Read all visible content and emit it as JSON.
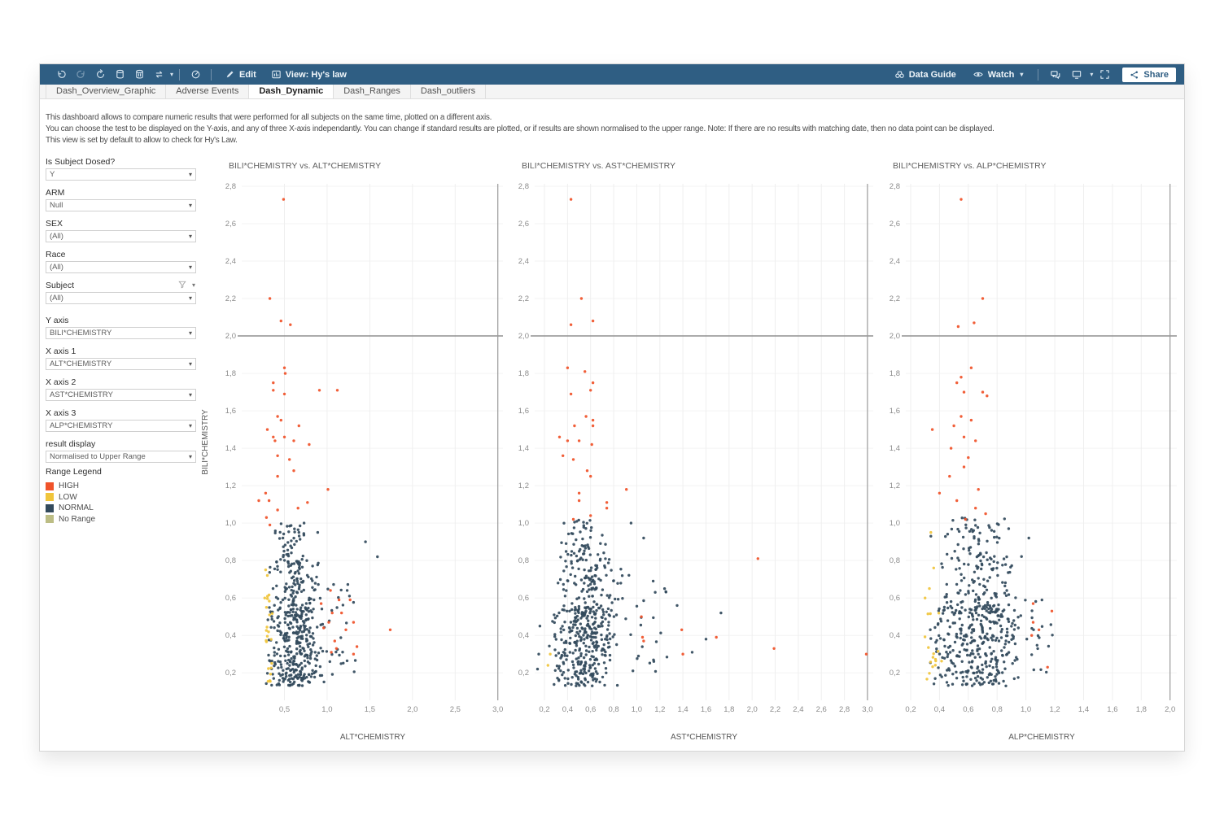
{
  "toolbar": {
    "edit_label": "Edit",
    "view_label": "View: Hy's law",
    "data_guide_label": "Data Guide",
    "watch_label": "Watch",
    "share_label": "Share"
  },
  "tabs": [
    {
      "label": "Dash_Overview_Graphic",
      "active": false
    },
    {
      "label": "Adverse Events",
      "active": false
    },
    {
      "label": "Dash_Dynamic",
      "active": true
    },
    {
      "label": "Dash_Ranges",
      "active": false
    },
    {
      "label": "Dash_outliers",
      "active": false
    }
  ],
  "description": {
    "line1": "This dashboard allows to compare numeric results that were performed for all subjects on the same time, plotted on a different axis.",
    "line2": "You can choose the test to be displayed on the Y-axis, and any of three X-axis independantly. You can change if standard results are plotted, or if results are shown normalised to the upper range. Note: If there are no results with matching date, then no data point can be displayed.",
    "line3": "This view is set by default to allow to check for Hy's Law."
  },
  "filters": [
    {
      "label": "Is Subject Dosed?",
      "value": "Y"
    },
    {
      "label": "ARM",
      "value": "Null"
    },
    {
      "label": "SEX",
      "value": "(All)"
    },
    {
      "label": "Race",
      "value": "(All)"
    },
    {
      "label": "Subject",
      "value": "(All)",
      "has_funnel": true
    },
    {
      "label": "Y axis",
      "value": "BILI*CHEMISTRY"
    },
    {
      "label": "X axis 1",
      "value": "ALT*CHEMISTRY"
    },
    {
      "label": "X axis 2",
      "value": "AST*CHEMISTRY"
    },
    {
      "label": "X axis 3",
      "value": "ALP*CHEMISTRY"
    },
    {
      "label": "result display",
      "value": "Normalised to Upper Range"
    }
  ],
  "legend": {
    "title": "Range Legend",
    "items": [
      {
        "label": "HIGH",
        "color": "#F0532A"
      },
      {
        "label": "LOW",
        "color": "#F0C53C"
      },
      {
        "label": "NORMAL",
        "color": "#334A5C"
      },
      {
        "label": "No Range",
        "color": "#BCBD85"
      }
    ]
  },
  "charts": [
    {
      "type": "scatter",
      "title": "BILI*CHEMISTRY vs. ALT*CHEMISTRY",
      "x_label": "ALT*CHEMISTRY",
      "y_label": "BILI*CHEMISTRY",
      "x_min": 0.0,
      "x_max": 3.06,
      "y_min": 0.053,
      "y_max": 2.813,
      "x_ticks": [
        0.5,
        1.0,
        1.5,
        2.0,
        2.5,
        3.0
      ],
      "y_ticks": [
        0.2,
        0.4,
        0.6,
        0.8,
        1.0,
        1.2,
        1.4,
        1.6,
        1.8,
        2.0,
        2.2,
        2.4,
        2.6,
        2.8
      ],
      "ref_y": 2.0,
      "ref_x": 3.0,
      "clusters": [
        {
          "cat": "NORMAL",
          "n": 300,
          "x": [
            0.27,
            1.0
          ],
          "y": [
            0.13,
            0.55
          ]
        },
        {
          "cat": "NORMAL",
          "n": 120,
          "x": [
            0.3,
            0.95
          ],
          "y": [
            0.5,
            0.8
          ]
        },
        {
          "cat": "NORMAL",
          "n": 45,
          "x": [
            0.33,
            0.8
          ],
          "y": [
            0.78,
            1.0
          ]
        },
        {
          "cat": "NORMAL",
          "n": 28,
          "x": [
            0.88,
            1.35
          ],
          "y": [
            0.18,
            0.68
          ]
        },
        {
          "cat": "LOW",
          "n": 20,
          "x": [
            0.26,
            0.37
          ],
          "y": [
            0.14,
            0.66
          ]
        }
      ],
      "points": [
        {
          "cat": "NORMAL",
          "pts": [
            [
              1.59,
              0.82
            ],
            [
              1.45,
              0.9
            ],
            [
              0.89,
              0.95
            ],
            [
              0.67,
              0.95
            ],
            [
              0.73,
              1.0
            ]
          ]
        },
        {
          "cat": "LOW",
          "pts": [
            [
              0.28,
              0.75
            ],
            [
              0.3,
              0.72
            ],
            [
              0.27,
              0.6
            ],
            [
              0.29,
              0.55
            ]
          ]
        },
        {
          "cat": "HIGH",
          "pts": [
            [
              0.49,
              2.73
            ],
            [
              0.33,
              2.2
            ],
            [
              0.46,
              2.08
            ],
            [
              0.57,
              2.06
            ],
            [
              0.5,
              1.83
            ],
            [
              0.51,
              1.8
            ],
            [
              0.37,
              1.75
            ],
            [
              0.37,
              1.71
            ],
            [
              0.5,
              1.69
            ],
            [
              0.91,
              1.71
            ],
            [
              1.12,
              1.71
            ],
            [
              0.42,
              1.57
            ],
            [
              0.46,
              1.55
            ],
            [
              0.3,
              1.5
            ],
            [
              0.67,
              1.52
            ],
            [
              0.37,
              1.46
            ],
            [
              0.5,
              1.46
            ],
            [
              0.39,
              1.44
            ],
            [
              0.61,
              1.44
            ],
            [
              0.79,
              1.42
            ],
            [
              0.42,
              1.36
            ],
            [
              0.56,
              1.34
            ],
            [
              0.61,
              1.28
            ],
            [
              0.42,
              1.25
            ],
            [
              1.01,
              1.18
            ],
            [
              0.28,
              1.16
            ],
            [
              0.2,
              1.12
            ],
            [
              0.32,
              1.12
            ],
            [
              0.77,
              1.11
            ],
            [
              0.66,
              1.08
            ],
            [
              0.42,
              1.07
            ],
            [
              0.29,
              1.03
            ],
            [
              0.33,
              0.99
            ],
            [
              1.04,
              0.64
            ],
            [
              1.14,
              0.59
            ],
            [
              1.27,
              0.59
            ],
            [
              1.06,
              0.52
            ],
            [
              1.17,
              0.52
            ],
            [
              1.31,
              0.47
            ],
            [
              0.96,
              0.44
            ],
            [
              1.22,
              0.43
            ],
            [
              1.74,
              0.43
            ],
            [
              1.09,
              0.37
            ],
            [
              1.35,
              0.34
            ],
            [
              1.11,
              0.33
            ],
            [
              1.05,
              0.31
            ],
            [
              1.31,
              0.3
            ],
            [
              0.93,
              0.57
            ],
            [
              1.02,
              0.47
            ]
          ]
        }
      ]
    },
    {
      "type": "scatter",
      "title": "BILI*CHEMISTRY vs. AST*CHEMISTRY",
      "x_label": "AST*CHEMISTRY",
      "x_min": 0.115,
      "x_max": 3.05,
      "y_min": 0.053,
      "y_max": 2.813,
      "x_ticks": [
        0.2,
        0.4,
        0.6,
        0.8,
        1.0,
        1.2,
        1.4,
        1.6,
        1.8,
        2.0,
        2.2,
        2.4,
        2.6,
        2.8,
        3.0
      ],
      "y_ticks": [
        0.2,
        0.4,
        0.6,
        0.8,
        1.0,
        1.2,
        1.4,
        1.6,
        1.8,
        2.0,
        2.2,
        2.4,
        2.6,
        2.8
      ],
      "ref_y": 2.0,
      "ref_x": 3.0,
      "clusters": [
        {
          "cat": "NORMAL",
          "n": 300,
          "x": [
            0.22,
            0.85
          ],
          "y": [
            0.13,
            0.55
          ]
        },
        {
          "cat": "NORMAL",
          "n": 130,
          "x": [
            0.25,
            0.92
          ],
          "y": [
            0.5,
            0.85
          ]
        },
        {
          "cat": "NORMAL",
          "n": 40,
          "x": [
            0.32,
            0.78
          ],
          "y": [
            0.82,
            1.02
          ]
        },
        {
          "cat": "NORMAL",
          "n": 25,
          "x": [
            0.85,
            1.3
          ],
          "y": [
            0.2,
            0.75
          ]
        }
      ],
      "points": [
        {
          "cat": "NORMAL",
          "pts": [
            [
              1.16,
              0.63
            ],
            [
              1.35,
              0.56
            ],
            [
              1.48,
              0.31
            ],
            [
              1.73,
              0.52
            ],
            [
              1.06,
              0.92
            ],
            [
              0.95,
              1.0
            ],
            [
              1.6,
              0.38
            ],
            [
              0.15,
              0.3
            ],
            [
              0.16,
              0.45
            ],
            [
              0.14,
              0.22
            ]
          ]
        },
        {
          "cat": "LOW",
          "pts": [
            [
              0.25,
              0.3
            ],
            [
              0.23,
              0.24
            ]
          ]
        },
        {
          "cat": "HIGH",
          "pts": [
            [
              0.43,
              2.73
            ],
            [
              0.52,
              2.2
            ],
            [
              0.62,
              2.08
            ],
            [
              0.43,
              2.06
            ],
            [
              0.4,
              1.83
            ],
            [
              0.55,
              1.81
            ],
            [
              0.62,
              1.75
            ],
            [
              0.6,
              1.71
            ],
            [
              0.43,
              1.69
            ],
            [
              0.56,
              1.57
            ],
            [
              0.62,
              1.55
            ],
            [
              0.46,
              1.52
            ],
            [
              0.62,
              1.52
            ],
            [
              0.33,
              1.46
            ],
            [
              0.4,
              1.44
            ],
            [
              0.5,
              1.44
            ],
            [
              0.61,
              1.42
            ],
            [
              0.36,
              1.36
            ],
            [
              0.45,
              1.34
            ],
            [
              0.57,
              1.28
            ],
            [
              0.6,
              1.25
            ],
            [
              0.91,
              1.18
            ],
            [
              0.5,
              1.16
            ],
            [
              0.5,
              1.12
            ],
            [
              0.74,
              1.11
            ],
            [
              0.74,
              1.08
            ],
            [
              0.6,
              1.04
            ],
            [
              0.45,
              1.02
            ],
            [
              1.04,
              0.5
            ],
            [
              1.05,
              0.39
            ],
            [
              1.06,
              0.37
            ],
            [
              1.39,
              0.43
            ],
            [
              1.69,
              0.39
            ],
            [
              2.05,
              0.81
            ],
            [
              2.19,
              0.33
            ],
            [
              2.99,
              0.3
            ],
            [
              1.4,
              0.3
            ]
          ]
        }
      ]
    },
    {
      "type": "scatter",
      "title": "BILI*CHEMISTRY vs. ALP*CHEMISTRY",
      "x_label": "ALP*CHEMISTRY",
      "x_min": 0.166,
      "x_max": 2.047,
      "y_min": 0.053,
      "y_max": 2.813,
      "x_ticks": [
        0.2,
        0.4,
        0.6,
        0.8,
        1.0,
        1.2,
        1.4,
        1.6,
        1.8,
        2.0
      ],
      "y_ticks": [
        0.2,
        0.4,
        0.6,
        0.8,
        1.0,
        1.2,
        1.4,
        1.6,
        1.8,
        2.0,
        2.2,
        2.4,
        2.6,
        2.8
      ],
      "ref_y": 2.0,
      "ref_x": 2.0,
      "clusters": [
        {
          "cat": "NORMAL",
          "n": 300,
          "x": [
            0.32,
            1.0
          ],
          "y": [
            0.13,
            0.55
          ]
        },
        {
          "cat": "NORMAL",
          "n": 140,
          "x": [
            0.36,
            1.0
          ],
          "y": [
            0.5,
            0.85
          ]
        },
        {
          "cat": "NORMAL",
          "n": 45,
          "x": [
            0.42,
            0.88
          ],
          "y": [
            0.82,
            1.03
          ]
        },
        {
          "cat": "NORMAL",
          "n": 20,
          "x": [
            0.95,
            1.22
          ],
          "y": [
            0.2,
            0.6
          ]
        },
        {
          "cat": "LOW",
          "n": 16,
          "x": [
            0.28,
            0.42
          ],
          "y": [
            0.15,
            0.55
          ]
        }
      ],
      "points": [
        {
          "cat": "NORMAL",
          "pts": [
            [
              0.34,
              0.93
            ],
            [
              1.02,
              0.92
            ],
            [
              0.88,
              0.97
            ]
          ]
        },
        {
          "cat": "LOW",
          "pts": [
            [
              0.34,
              0.95
            ],
            [
              0.36,
              0.76
            ],
            [
              0.33,
              0.65
            ],
            [
              0.3,
              0.6
            ]
          ]
        },
        {
          "cat": "HIGH",
          "pts": [
            [
              0.55,
              2.73
            ],
            [
              0.7,
              2.2
            ],
            [
              0.53,
              2.05
            ],
            [
              0.64,
              2.07
            ],
            [
              0.62,
              1.83
            ],
            [
              0.55,
              1.78
            ],
            [
              0.52,
              1.75
            ],
            [
              0.57,
              1.7
            ],
            [
              0.7,
              1.7
            ],
            [
              0.73,
              1.68
            ],
            [
              0.35,
              1.5
            ],
            [
              0.55,
              1.57
            ],
            [
              0.62,
              1.55
            ],
            [
              0.5,
              1.52
            ],
            [
              0.57,
              1.46
            ],
            [
              0.65,
              1.44
            ],
            [
              0.48,
              1.4
            ],
            [
              0.6,
              1.35
            ],
            [
              0.57,
              1.3
            ],
            [
              0.47,
              1.25
            ],
            [
              0.67,
              1.18
            ],
            [
              0.4,
              1.16
            ],
            [
              0.52,
              1.12
            ],
            [
              0.65,
              1.08
            ],
            [
              0.72,
              1.05
            ],
            [
              0.58,
              1.02
            ],
            [
              1.05,
              0.57
            ],
            [
              1.18,
              0.53
            ],
            [
              1.05,
              0.47
            ],
            [
              1.09,
              0.43
            ],
            [
              1.04,
              0.4
            ],
            [
              1.15,
              0.23
            ]
          ]
        }
      ]
    }
  ]
}
